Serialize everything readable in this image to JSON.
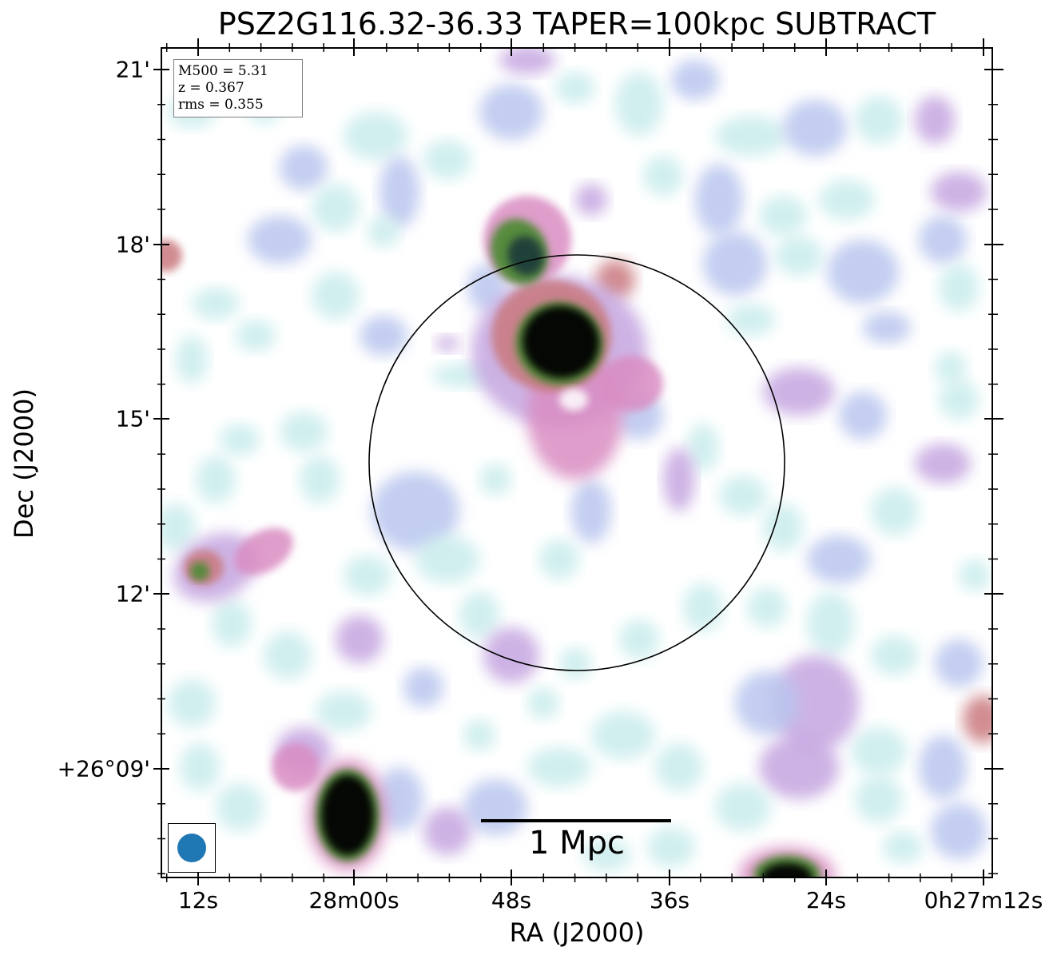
{
  "title": "PSZ2G116.32-36.33 TAPER=100kpc SUBTRACT",
  "axes": {
    "xlabel": "RA (J2000)",
    "ylabel": "Dec (J2000)",
    "xticks": [
      "12s",
      "28m00s",
      "48s",
      "36s",
      "24s",
      "0h27m12s"
    ],
    "yticks": [
      "21'",
      "18'",
      "15'",
      "12'",
      "+26°09'"
    ]
  },
  "info": {
    "m500": "M500 = 5.31",
    "z": "z = 0.367",
    "rms": "rms = 0.355"
  },
  "scale_bar": {
    "label": "1 Mpc"
  },
  "colors": {
    "beam": "#1f77b4",
    "circle": "#000000",
    "colormap": [
      "#ffffff",
      "#c9ecec",
      "#b9c6ee",
      "#c4a6e0",
      "#d98cc2",
      "#c9787e",
      "#4f8a35",
      "#1c3c3a",
      "#000000"
    ]
  }
}
